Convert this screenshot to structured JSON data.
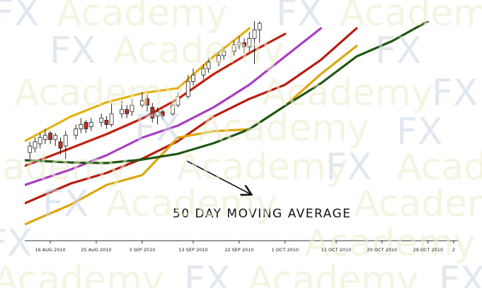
{
  "chart_data": {
    "type": "line",
    "annotation": "50 DAY MOVING AVERAGE",
    "watermark": {
      "brand": "FX",
      "word": "Academy"
    },
    "xlim": [
      -5,
      80
    ],
    "ylim": [
      0,
      100
    ],
    "xticks": [
      {
        "value": 0,
        "label": "16 AUG 2010"
      },
      {
        "value": 9,
        "label": "25 AUG 2010"
      },
      {
        "value": 18,
        "label": "3 SEP 2010"
      },
      {
        "value": 28,
        "label": "13 SEP 2010"
      },
      {
        "value": 37,
        "label": "22 SEP 2010"
      },
      {
        "value": 46,
        "label": "1 OCT 2010"
      },
      {
        "value": 56,
        "label": "11 OCT 2010"
      },
      {
        "value": 65,
        "label": "20 OCT 2010"
      },
      {
        "value": 74,
        "label": "29 OCT 2010"
      },
      {
        "value": 79,
        "label": "2"
      }
    ],
    "x": [
      -5,
      4,
      11,
      18,
      25,
      32,
      39,
      46,
      53,
      60,
      67,
      74
    ],
    "series": [
      {
        "color": "#e6b010",
        "values": [
          44.3,
          55.7,
          62.3,
          66.6,
          68.9,
          83.6,
          96.7,
          null,
          null,
          null,
          null,
          null
        ]
      },
      {
        "color": "#c2200f",
        "values": [
          32.8,
          41,
          47.5,
          54.8,
          63.9,
          75.4,
          85.2,
          94.1,
          null,
          null,
          null,
          null
        ]
      },
      {
        "color": "#a93cc0",
        "values": [
          23.9,
          31.1,
          37.7,
          45.9,
          51.5,
          60,
          70.5,
          83.6,
          96.7,
          null,
          null,
          null
        ]
      },
      {
        "color": "#b81a0e",
        "values": [
          15.4,
          24.6,
          29.5,
          36.1,
          44.3,
          55.7,
          63.9,
          70.5,
          82,
          96.7,
          null,
          null
        ]
      },
      {
        "color": "#dca60c",
        "values": [
          5.6,
          14.8,
          23.9,
          28.5,
          45.9,
          48.9,
          49.8,
          60.7,
          75.4,
          88.5,
          null,
          null
        ]
      },
      {
        "color": "#1f5612",
        "values": [
          35.4,
          34.4,
          34.1,
          35.7,
          38.4,
          43.3,
          49.8,
          60.7,
          71.1,
          83.6,
          90.8,
          100
        ]
      }
    ],
    "candles": {
      "up_color": "#ffffff",
      "down_color": "#c8281a",
      "x": [
        -4,
        -3,
        -2,
        -1,
        0,
        1,
        2,
        3,
        5,
        6,
        7,
        8,
        10,
        11,
        12,
        14,
        15,
        16,
        18,
        19,
        20,
        21,
        22,
        24,
        25,
        27,
        28,
        30,
        31,
        33,
        34,
        36,
        37,
        38,
        39,
        40,
        41
      ],
      "open": [
        39,
        41,
        43,
        45,
        48,
        45,
        44,
        42,
        47,
        50,
        53,
        51,
        53,
        54,
        52,
        57,
        59,
        58,
        61,
        64,
        60,
        56,
        58,
        57,
        61,
        65,
        72,
        75,
        78,
        81,
        84,
        86,
        89,
        90,
        88,
        92,
        96
      ],
      "close": [
        42,
        44,
        46,
        47,
        45,
        47,
        41,
        47,
        50,
        52,
        50,
        53,
        55,
        52,
        57,
        59,
        57,
        61,
        63,
        61,
        55,
        58,
        56,
        61,
        65,
        72,
        75,
        78,
        81,
        84,
        86,
        89,
        90,
        88,
        92,
        96,
        99
      ],
      "high": [
        44,
        46,
        48,
        50,
        49,
        48,
        46,
        49,
        52,
        55,
        54,
        55,
        57,
        56,
        62,
        63,
        61,
        64,
        67,
        66,
        62,
        60,
        59,
        63,
        67,
        75,
        78,
        80,
        83,
        86,
        88,
        91,
        93,
        92,
        95,
        102,
        102
      ],
      "low": [
        36,
        39,
        41,
        43,
        43,
        42,
        38,
        36,
        45,
        48,
        48,
        49,
        51,
        50,
        51,
        55,
        55,
        56,
        60,
        58,
        53,
        52,
        54,
        56,
        60,
        64,
        70,
        73,
        76,
        79,
        82,
        84,
        87,
        85,
        86,
        80,
        90
      ]
    }
  }
}
